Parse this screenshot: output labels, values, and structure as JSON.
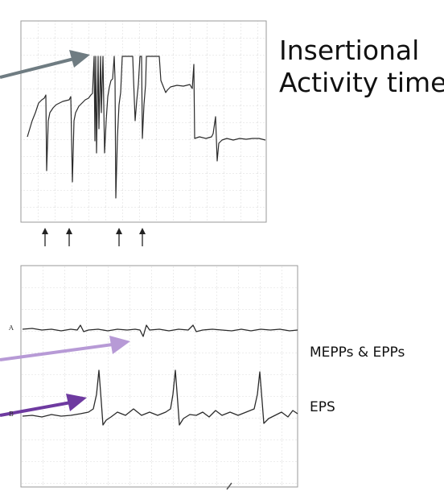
{
  "title": {
    "line1": "Insertional",
    "line2": "Activity time"
  },
  "labels": {
    "mepps": "MEPPs & EPPs",
    "eps": "EPS",
    "trace_a": "A",
    "trace_b": "B"
  },
  "colors": {
    "arrow_gray": "#6f7c82",
    "arrow_light_purple": "#b79ad6",
    "arrow_dark_purple": "#6e3aa0",
    "trace": "#2b2b2b",
    "grid": "#cfcfcf"
  },
  "markers": {
    "count": 4,
    "icon": "up-arrow-icon"
  }
}
